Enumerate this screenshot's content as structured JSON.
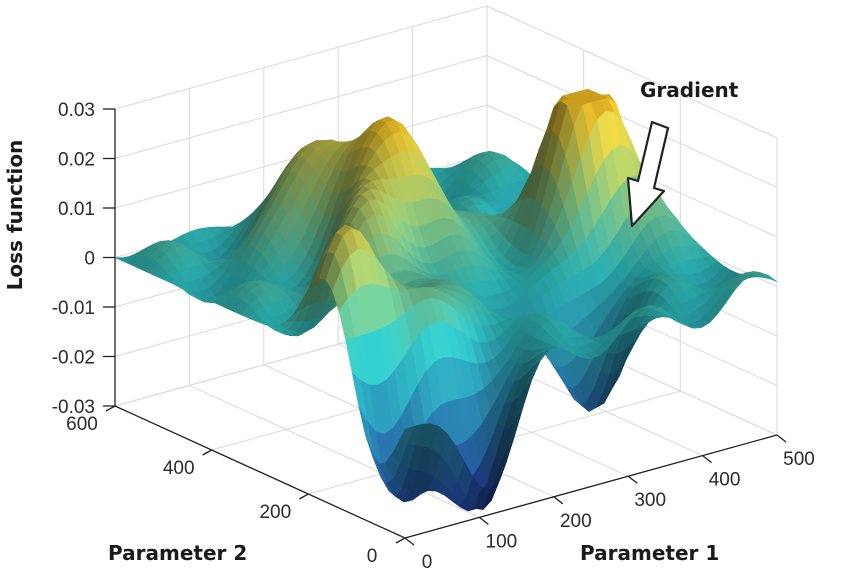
{
  "chart_data": {
    "type": "surface",
    "zlabel": "Loss function",
    "xlabel": "Parameter 1",
    "ylabel": "Parameter 2",
    "xlim": [
      0,
      500
    ],
    "ylim": [
      0,
      600
    ],
    "zlim": [
      -0.03,
      0.03
    ],
    "x_ticks": [
      "0",
      "100",
      "200",
      "300",
      "400",
      "500"
    ],
    "y_ticks": [
      "0",
      "200",
      "400",
      "600"
    ],
    "z_ticks": [
      "-0.03",
      "-0.02",
      "-0.01",
      "0",
      "0.01",
      "0.02",
      "0.03"
    ],
    "grid": true,
    "colormap": "parula",
    "annotation": {
      "text": "Gradient",
      "type": "arrow"
    },
    "colors": {
      "low": "#1a2d7a",
      "mid": "#2aa8a8",
      "high": "#e0b020",
      "grid": "#d9d9d9",
      "axis": "#222222"
    },
    "peaks": [
      {
        "x": 180,
        "y": 460,
        "z": 0.025
      },
      {
        "x": 230,
        "y": 360,
        "z": 0.028
      },
      {
        "x": 150,
        "y": 300,
        "z": 0.02
      },
      {
        "x": 430,
        "y": 260,
        "z": 0.03
      },
      {
        "x": 30,
        "y": 160,
        "z": 0.022
      },
      {
        "x": 120,
        "y": 130,
        "z": 0.012
      },
      {
        "x": 380,
        "y": 280,
        "z": 0.012
      }
    ],
    "valleys": [
      {
        "x": 120,
        "y": 40,
        "z": -0.03
      },
      {
        "x": 30,
        "y": 60,
        "z": -0.025
      },
      {
        "x": 320,
        "y": 120,
        "z": -0.02
      },
      {
        "x": 450,
        "y": 400,
        "z": -0.015
      }
    ]
  }
}
